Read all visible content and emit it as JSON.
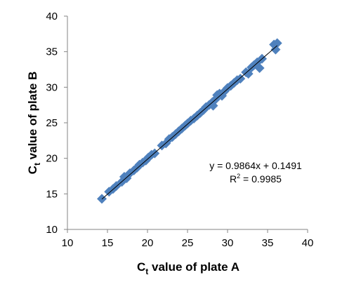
{
  "chart_data": {
    "type": "scatter",
    "xlabel": {
      "base": "C",
      "sub": "t",
      "rest": " value of plate A"
    },
    "ylabel": {
      "base": "C",
      "sub": "t",
      "rest": " value of plate B"
    },
    "xlim": [
      10,
      40
    ],
    "ylim": [
      10,
      40
    ],
    "x_ticks": [
      10,
      15,
      20,
      25,
      30,
      35,
      40
    ],
    "y_ticks": [
      10,
      15,
      20,
      25,
      30,
      35,
      40
    ],
    "grid": false,
    "marker_color": "#4F81BD",
    "trendline_color": "#000000",
    "equation": "y = 0.9864x + 0.1491",
    "r_squared": {
      "base": "R",
      "sup": "2",
      "rest": " = 0.9985"
    },
    "trendline": {
      "slope": 0.9864,
      "intercept": 0.1491,
      "x_range": [
        14.3,
        36.2
      ]
    },
    "points": [
      [
        14.3,
        14.3
      ],
      [
        15.2,
        15.3
      ],
      [
        15.7,
        15.7
      ],
      [
        16.1,
        16.1
      ],
      [
        16.8,
        16.7
      ],
      [
        17.1,
        17.4
      ],
      [
        17.4,
        17.2
      ],
      [
        17.8,
        17.9
      ],
      [
        18.3,
        18.3
      ],
      [
        18.7,
        18.7
      ],
      [
        19.0,
        19.1
      ],
      [
        19.4,
        19.4
      ],
      [
        19.8,
        19.7
      ],
      [
        20.1,
        20.1
      ],
      [
        20.5,
        20.5
      ],
      [
        20.9,
        20.7
      ],
      [
        21.8,
        21.8
      ],
      [
        22.3,
        22.1
      ],
      [
        22.7,
        22.7
      ],
      [
        23.1,
        23.0
      ],
      [
        23.5,
        23.4
      ],
      [
        23.9,
        23.8
      ],
      [
        24.3,
        24.2
      ],
      [
        24.7,
        24.6
      ],
      [
        25.0,
        24.9
      ],
      [
        25.4,
        25.3
      ],
      [
        25.8,
        25.6
      ],
      [
        26.2,
        26.0
      ],
      [
        26.6,
        26.4
      ],
      [
        27.0,
        26.8
      ],
      [
        27.3,
        27.2
      ],
      [
        27.7,
        27.5
      ],
      [
        28.1,
        27.9
      ],
      [
        28.2,
        27.4
      ],
      [
        28.5,
        28.3
      ],
      [
        28.7,
        28.9
      ],
      [
        29.0,
        29.1
      ],
      [
        29.3,
        28.8
      ],
      [
        29.6,
        29.4
      ],
      [
        30.0,
        29.9
      ],
      [
        30.4,
        30.2
      ],
      [
        30.8,
        30.6
      ],
      [
        31.2,
        31.0
      ],
      [
        31.6,
        31.2
      ],
      [
        32.3,
        32.1
      ],
      [
        32.6,
        31.9
      ],
      [
        33.0,
        32.8
      ],
      [
        33.3,
        33.1
      ],
      [
        33.7,
        33.5
      ],
      [
        34.0,
        32.7
      ],
      [
        34.3,
        34.0
      ],
      [
        35.8,
        36.0
      ],
      [
        36.0,
        35.3
      ],
      [
        36.2,
        36.2
      ]
    ]
  }
}
